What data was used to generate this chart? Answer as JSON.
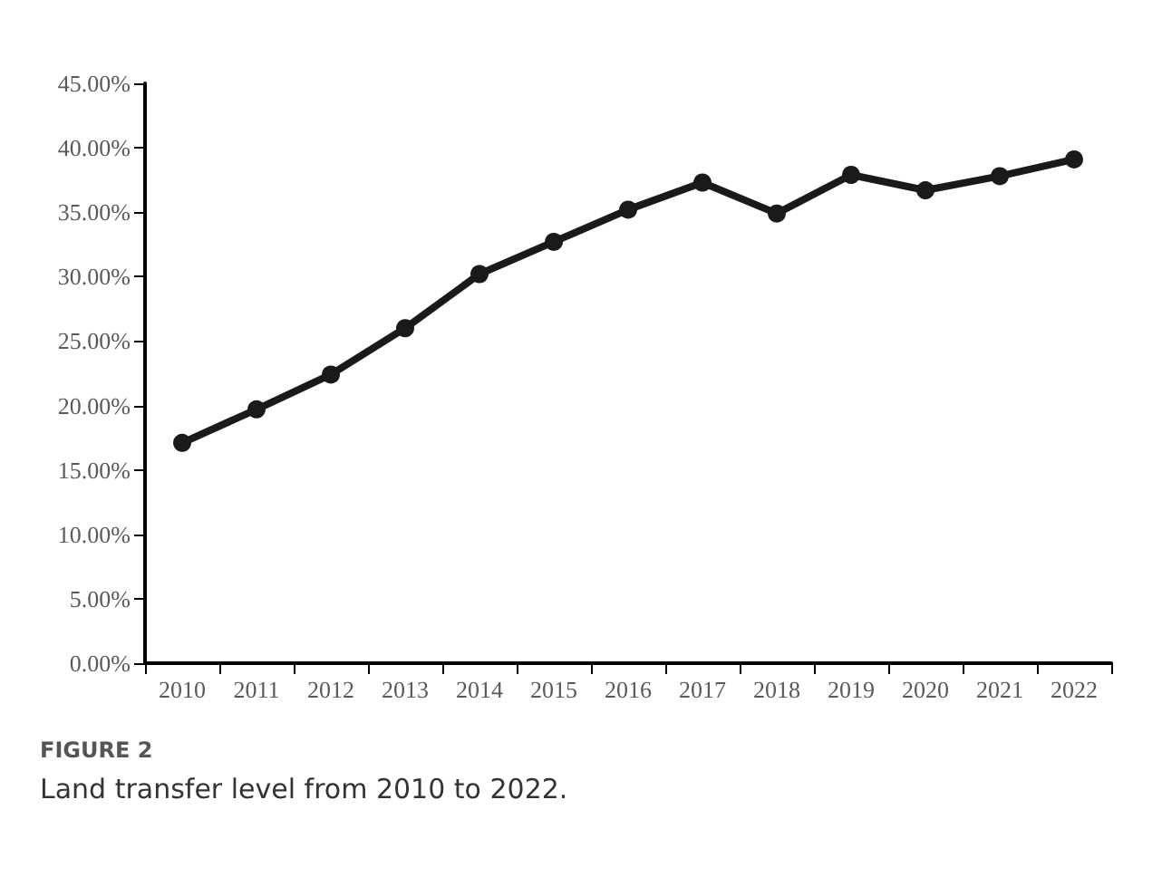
{
  "chart_data": {
    "type": "line",
    "categories": [
      "2010",
      "2011",
      "2012",
      "2013",
      "2014",
      "2015",
      "2016",
      "2017",
      "2018",
      "2019",
      "2020",
      "2021",
      "2022"
    ],
    "series": [
      {
        "color": "#1a1a1a",
        "values": [
          17.1,
          19.7,
          22.4,
          26.0,
          30.2,
          32.7,
          35.2,
          37.3,
          34.9,
          37.9,
          36.7,
          37.8,
          39.1
        ]
      }
    ],
    "ylim": [
      0,
      45
    ],
    "yticks": [
      {
        "value": 0,
        "label": "0.00%"
      },
      {
        "value": 5,
        "label": "5.00%"
      },
      {
        "value": 10,
        "label": "10.00%"
      },
      {
        "value": 15,
        "label": "15.00%"
      },
      {
        "value": 20,
        "label": "20.00%"
      },
      {
        "value": 25,
        "label": "25.00%"
      },
      {
        "value": 30,
        "label": "30.00%"
      },
      {
        "value": 35,
        "label": "35.00%"
      },
      {
        "value": 40,
        "label": "40.00%"
      },
      {
        "value": 45,
        "label": "45.00%"
      }
    ],
    "grid": false,
    "marker": "circle",
    "line_style": "solid",
    "annotations": [
      "FIGURE 2",
      "Land transfer level from 2010 to 2022."
    ]
  }
}
